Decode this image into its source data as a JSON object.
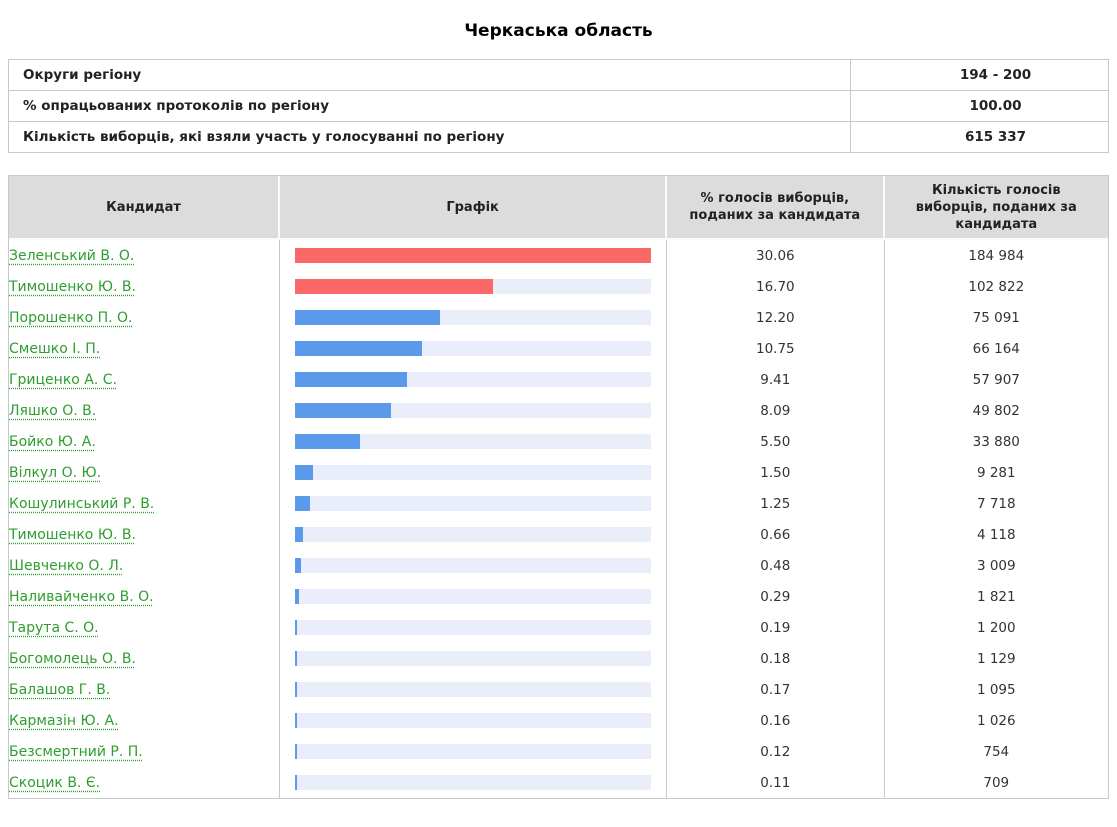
{
  "page": {
    "title": "Черкаська область"
  },
  "summary": {
    "rows": [
      {
        "label": "Округи регіону",
        "value": "194 - 200"
      },
      {
        "label": "% опрацьованих протоколів по регіону",
        "value": "100.00"
      },
      {
        "label": "Кількість виборців, які взяли участь у голосуванні по регіону",
        "value": "615 337"
      }
    ]
  },
  "results": {
    "headers": {
      "candidate": "Кандидат",
      "graph": "Графік",
      "percent": "% голосів виборців, поданих за кандидата",
      "votes": "Кількість голосів виборців, поданих за кандидата"
    },
    "max_percent": 30.06,
    "rows": [
      {
        "candidate": "Зеленський В. О.",
        "percent": "30.06",
        "votes": "184 984",
        "bar_color": "red"
      },
      {
        "candidate": "Тимошенко Ю. В.",
        "percent": "16.70",
        "votes": "102 822",
        "bar_color": "red"
      },
      {
        "candidate": "Порошенко П. О.",
        "percent": "12.20",
        "votes": "75 091",
        "bar_color": "blue"
      },
      {
        "candidate": "Смешко І. П.",
        "percent": "10.75",
        "votes": "66 164",
        "bar_color": "blue"
      },
      {
        "candidate": "Гриценко А. С.",
        "percent": "9.41",
        "votes": "57 907",
        "bar_color": "blue"
      },
      {
        "candidate": "Ляшко О. В.",
        "percent": "8.09",
        "votes": "49 802",
        "bar_color": "blue"
      },
      {
        "candidate": "Бойко Ю. А.",
        "percent": "5.50",
        "votes": "33 880",
        "bar_color": "blue"
      },
      {
        "candidate": "Вілкул О. Ю.",
        "percent": "1.50",
        "votes": "9 281",
        "bar_color": "blue"
      },
      {
        "candidate": "Кошулинський Р. В.",
        "percent": "1.25",
        "votes": "7 718",
        "bar_color": "blue"
      },
      {
        "candidate": "Тимошенко Ю. В.",
        "percent": "0.66",
        "votes": "4 118",
        "bar_color": "blue"
      },
      {
        "candidate": "Шевченко О. Л.",
        "percent": "0.48",
        "votes": "3 009",
        "bar_color": "blue"
      },
      {
        "candidate": "Наливайченко В. О.",
        "percent": "0.29",
        "votes": "1 821",
        "bar_color": "blue"
      },
      {
        "candidate": "Тарута С. О.",
        "percent": "0.19",
        "votes": "1 200",
        "bar_color": "blue"
      },
      {
        "candidate": "Богомолець О. В.",
        "percent": "0.18",
        "votes": "1 129",
        "bar_color": "blue"
      },
      {
        "candidate": "Балашов Г. В.",
        "percent": "0.17",
        "votes": "1 095",
        "bar_color": "blue"
      },
      {
        "candidate": "Кармазін Ю. А.",
        "percent": "0.16",
        "votes": "1 026",
        "bar_color": "blue"
      },
      {
        "candidate": "Безсмертний Р. П.",
        "percent": "0.12",
        "votes": "754",
        "bar_color": "blue"
      },
      {
        "candidate": "Скоцик В. Є.",
        "percent": "0.11",
        "votes": "709",
        "bar_color": "blue"
      }
    ]
  },
  "colors": {
    "bar_red": "#fa6868",
    "bar_blue": "#5b99ea",
    "bar_track": "#e9eefa",
    "header_bg": "#dcdcdc",
    "link_green": "#2e9e2e",
    "border_gray": "#c8c8c8"
  },
  "chart_data": {
    "type": "bar",
    "orientation": "horizontal",
    "title": "Черкаська область",
    "categories": [
      "Зеленський В. О.",
      "Тимошенко Ю. В.",
      "Порошенко П. О.",
      "Смешко І. П.",
      "Гриценко А. С.",
      "Ляшко О. В.",
      "Бойко Ю. А.",
      "Вілкул О. Ю.",
      "Кошулинський Р. В.",
      "Тимошенко Ю. В.",
      "Шевченко О. Л.",
      "Наливайченко В. О.",
      "Тарута С. О.",
      "Богомолець О. В.",
      "Балашов Г. В.",
      "Кармазін Ю. А.",
      "Безсмертний Р. П.",
      "Скоцик В. Є."
    ],
    "series": [
      {
        "name": "% голосів виборців, поданих за кандидата",
        "values": [
          30.06,
          16.7,
          12.2,
          10.75,
          9.41,
          8.09,
          5.5,
          1.5,
          1.25,
          0.66,
          0.48,
          0.29,
          0.19,
          0.18,
          0.17,
          0.16,
          0.12,
          0.11
        ]
      },
      {
        "name": "Кількість голосів виборців, поданих за кандидата",
        "values": [
          184984,
          102822,
          75091,
          66164,
          57907,
          49802,
          33880,
          9281,
          7718,
          4118,
          3009,
          1821,
          1200,
          1129,
          1095,
          1026,
          754,
          709
        ]
      }
    ],
    "xlim": [
      0,
      30.06
    ],
    "grid": false,
    "legend_position": "none"
  }
}
